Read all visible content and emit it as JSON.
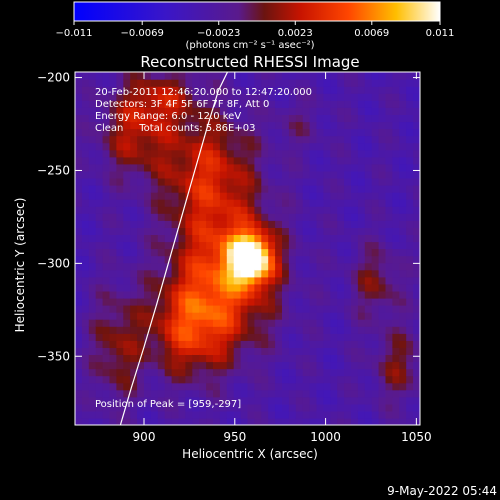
{
  "chart_data": {
    "type": "heatmap",
    "title": "Reconstructed RHESSI Image",
    "xlabel": "Heliocentric X (arcsec)",
    "ylabel": "Heliocentric Y (arcsec)",
    "xlim": [
      862,
      1052
    ],
    "ylim": [
      -387,
      -197
    ],
    "x_ticks": [
      900,
      950,
      1000,
      1050
    ],
    "x_tick_labels": [
      "900",
      "950",
      "1000",
      "1050"
    ],
    "y_ticks": [
      -200,
      -250,
      -300,
      -350
    ],
    "y_tick_labels": [
      "−200",
      "−250",
      "−300",
      "−350"
    ],
    "colorbar": {
      "range": [
        -0.011,
        0.011
      ],
      "ticks": [
        -0.011,
        -0.0069,
        -0.0023,
        0.0023,
        0.0069,
        0.011
      ],
      "tick_labels": [
        "−0.011",
        "−0.0069",
        "−0.0023",
        "0.0023",
        "0.0069",
        "0.011"
      ],
      "unit_label": "(photons cm⁻² s⁻¹ asec⁻²)",
      "colormap": "blue-purple-red-yellow-white"
    },
    "annotations": [
      "20-Feb-2011 12:46:20.000 to 12:47:20.000",
      "Detectors: 3F 4F 5F 6F 7F 8F, Att 0",
      "Energy Range: 6.0 - 12.0 keV",
      "Clean     Total counts: 5.86E+03"
    ],
    "peak_label": "Position of Peak = [959,-297]",
    "peak": {
      "x": 959,
      "y": -297,
      "value": 0.011
    },
    "sources": [
      {
        "x": 959,
        "y": -297,
        "sx": 8,
        "sy": 9,
        "amp": 1.0
      },
      {
        "x": 945,
        "y": -305,
        "sx": 20,
        "sy": 26,
        "amp": 0.55
      },
      {
        "x": 925,
        "y": -335,
        "sx": 16,
        "sy": 18,
        "amp": 0.45
      },
      {
        "x": 935,
        "y": -250,
        "sx": 18,
        "sy": 22,
        "amp": 0.42
      },
      {
        "x": 895,
        "y": -230,
        "sx": 14,
        "sy": 16,
        "amp": 0.35
      },
      {
        "x": 910,
        "y": -210,
        "sx": 14,
        "sy": 10,
        "amp": 0.3
      },
      {
        "x": 885,
        "y": -345,
        "sx": 10,
        "sy": 22,
        "amp": 0.28
      },
      {
        "x": 1028,
        "y": -310,
        "sx": 10,
        "sy": 14,
        "amp": 0.25
      },
      {
        "x": 1040,
        "y": -355,
        "sx": 10,
        "sy": 14,
        "amp": 0.25
      },
      {
        "x": 985,
        "y": -225,
        "sx": 10,
        "sy": 10,
        "amp": 0.12
      }
    ],
    "limb_curve": {
      "x": [
        887,
        893,
        900,
        907,
        914,
        921,
        928,
        935,
        941,
        946
      ],
      "y": [
        -387,
        -367,
        -345,
        -322,
        -298,
        -274,
        -250,
        -226,
        -207,
        -197
      ]
    }
  },
  "date_stamp": "9-May-2022 05:44"
}
